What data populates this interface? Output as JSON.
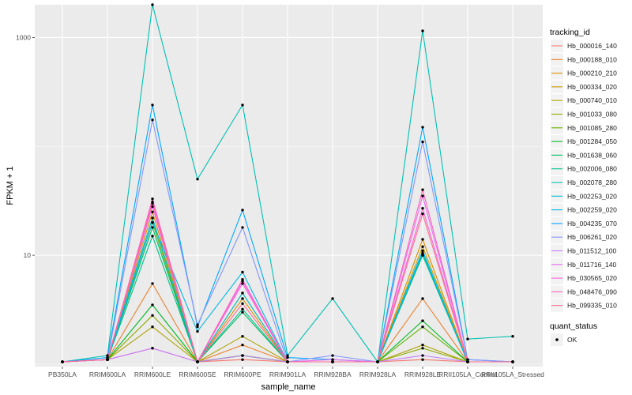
{
  "chart_data": {
    "type": "line",
    "xlabel": "sample_name",
    "ylabel": "FPKM + 1",
    "y_scale": "log10",
    "ylim": [
      0.95,
      2000
    ],
    "y_ticks": [
      {
        "value": 10,
        "label": "10"
      },
      {
        "value": 1000,
        "label": "1000"
      }
    ],
    "grid": true,
    "legend_placement": "right",
    "legend_title": "tracking_id",
    "status_legend_title": "quant_status",
    "status_legend_label": "OK",
    "categories": [
      "PB350LA",
      "RRIM600LA",
      "RRIM600LE",
      "RRIM600SE",
      "RRIM600PE",
      "RRIM901LA",
      "RRIM928BA",
      "RRIM928LA",
      "RRIM928LE",
      "RRII105LA_Control",
      "RRII105LA_Stressed"
    ],
    "series": [
      {
        "name": "Hb_000016_140",
        "color": "#F8766D",
        "values": [
          1.05,
          1.1,
          1.4,
          1.05,
          1.1,
          1.05,
          1.05,
          1.05,
          1.1,
          1.05,
          1.05
        ]
      },
      {
        "name": "Hb_000188_010",
        "color": "#EA8331",
        "values": [
          1.05,
          1.1,
          5.5,
          1.05,
          1.5,
          1.05,
          1.05,
          1.05,
          4.0,
          1.05,
          1.05
        ]
      },
      {
        "name": "Hb_000210_210",
        "color": "#DB8E00",
        "values": [
          1.05,
          1.1,
          25,
          1.05,
          4.0,
          1.05,
          1.05,
          1.05,
          14,
          1.05,
          1.05
        ]
      },
      {
        "name": "Hb_000334_020",
        "color": "#C79800",
        "values": [
          1.05,
          1.1,
          22,
          1.05,
          4.5,
          1.05,
          1.05,
          1.05,
          12,
          1.05,
          1.05
        ]
      },
      {
        "name": "Hb_000740_010",
        "color": "#AEA200",
        "values": [
          1.05,
          1.1,
          2.2,
          1.05,
          1.8,
          1.05,
          1.05,
          1.05,
          1.5,
          1.05,
          1.05
        ]
      },
      {
        "name": "Hb_001033_080",
        "color": "#8FAA00",
        "values": [
          1.05,
          1.1,
          2.8,
          1.05,
          1.2,
          1.05,
          1.05,
          1.05,
          1.4,
          1.05,
          1.05
        ]
      },
      {
        "name": "Hb_001085_280",
        "color": "#64B200",
        "values": [
          1.05,
          1.1,
          20,
          1.05,
          1.2,
          1.05,
          1.05,
          1.05,
          2.2,
          1.05,
          1.05
        ]
      },
      {
        "name": "Hb_001284_050",
        "color": "#00B81F",
        "values": [
          1.05,
          1.1,
          3.5,
          1.05,
          1.2,
          1.05,
          1.05,
          1.05,
          2.5,
          1.05,
          1.05
        ]
      },
      {
        "name": "Hb_001638_060",
        "color": "#00BD5C",
        "values": [
          1.05,
          1.1,
          18,
          1.05,
          3.0,
          1.05,
          1.05,
          1.05,
          10,
          1.05,
          1.05
        ]
      },
      {
        "name": "Hb_002006_080",
        "color": "#00C08B",
        "values": [
          1.05,
          1.1,
          15,
          1.05,
          3.2,
          1.05,
          1.05,
          1.05,
          10,
          1.05,
          1.05
        ]
      },
      {
        "name": "Hb_002078_280",
        "color": "#00C1B2",
        "values": [
          1.05,
          1.2,
          2000,
          50,
          240,
          1.2,
          4.0,
          1.05,
          1150,
          1.7,
          1.8
        ]
      },
      {
        "name": "Hb_002253_020",
        "color": "#00BFD4",
        "values": [
          1.05,
          1.1,
          22,
          1.05,
          4.5,
          1.05,
          1.05,
          1.05,
          10.5,
          1.05,
          1.05
        ]
      },
      {
        "name": "Hb_002259_020",
        "color": "#00B8E7",
        "values": [
          1.05,
          1.1,
          20,
          2.0,
          7.0,
          1.05,
          1.05,
          1.05,
          11,
          1.05,
          1.05
        ]
      },
      {
        "name": "Hb_004235_070",
        "color": "#00A9FF",
        "values": [
          1.05,
          1.15,
          240,
          2.2,
          26,
          1.15,
          1.1,
          1.05,
          150,
          1.1,
          1.05
        ]
      },
      {
        "name": "Hb_006261_020",
        "color": "#8494FF",
        "values": [
          1.05,
          1.1,
          175,
          2.3,
          18,
          1.05,
          1.2,
          1.05,
          110,
          1.1,
          1.05
        ]
      },
      {
        "name": "Hb_011512_100",
        "color": "#C77CFF",
        "values": [
          1.05,
          1.1,
          1.4,
          1.05,
          1.2,
          1.05,
          1.05,
          1.05,
          1.2,
          1.05,
          1.05
        ]
      },
      {
        "name": "Hb_011716_140",
        "color": "#E76BF3",
        "values": [
          1.05,
          1.1,
          28,
          1.05,
          5.8,
          1.05,
          1.1,
          1.05,
          35,
          1.05,
          1.05
        ]
      },
      {
        "name": "Hb_030565_020",
        "color": "#FA62DB",
        "values": [
          1.05,
          1.1,
          31,
          1.05,
          5.5,
          1.05,
          1.05,
          1.05,
          27,
          1.05,
          1.05
        ]
      },
      {
        "name": "Hb_048476_090",
        "color": "#FF62BC",
        "values": [
          1.05,
          1.1,
          33,
          1.05,
          6.0,
          1.05,
          1.05,
          1.05,
          40,
          1.05,
          1.05
        ]
      },
      {
        "name": "Hb_099335_010",
        "color": "#FF6C91",
        "values": [
          1.05,
          1.1,
          30,
          1.05,
          3.6,
          1.05,
          1.05,
          1.05,
          24,
          1.05,
          1.05
        ]
      }
    ]
  }
}
